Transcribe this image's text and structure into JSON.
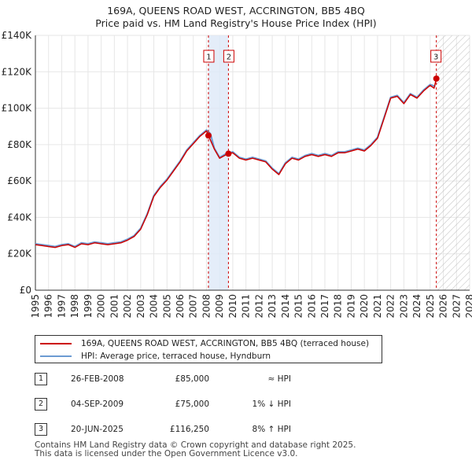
{
  "title": {
    "line1": "169A, QUEENS ROAD WEST, ACCRINGTON, BB5 4BQ",
    "line2": "Price paid vs. HM Land Registry's House Price Index (HPI)"
  },
  "colors": {
    "property": "#cc0000",
    "hpi": "#6b9bd2",
    "axis": "#333333",
    "grid": "#e6e6e6",
    "shade": "#dde8f7",
    "marker_line": "#cc0000",
    "hatch": "#bbbbbb"
  },
  "chart_data": {
    "type": "line",
    "title": "Price paid vs. HM Land Registry's House Price Index (HPI)",
    "xlabel": "",
    "ylabel": "",
    "xlim": [
      1995,
      2028
    ],
    "ylim": [
      0,
      140000
    ],
    "yticks": [
      0,
      20000,
      40000,
      60000,
      80000,
      100000,
      120000,
      140000
    ],
    "ytick_labels": [
      "£0",
      "£20K",
      "£40K",
      "£60K",
      "£80K",
      "£100K",
      "£120K",
      "£140K"
    ],
    "xticks": [
      1995,
      1996,
      1997,
      1998,
      1999,
      2000,
      2001,
      2002,
      2003,
      2004,
      2005,
      2006,
      2007,
      2008,
      2009,
      2010,
      2011,
      2012,
      2013,
      2014,
      2015,
      2016,
      2017,
      2018,
      2019,
      2020,
      2021,
      2022,
      2023,
      2024,
      2025,
      2026,
      2027,
      2028
    ],
    "grid": true,
    "shaded_period": [
      2008.15,
      2009.67
    ],
    "forecast_from": 2025.47,
    "series": [
      {
        "name": "HPI: Average price, terraced house, Hyndburn",
        "x": [
          1995.0,
          1995.5,
          1996.0,
          1996.5,
          1997.0,
          1997.5,
          1998.0,
          1998.5,
          1999.0,
          1999.5,
          2000.0,
          2000.5,
          2001.0,
          2001.5,
          2002.0,
          2002.5,
          2003.0,
          2003.5,
          2004.0,
          2004.5,
          2005.0,
          2005.5,
          2006.0,
          2006.5,
          2007.0,
          2007.5,
          2008.0,
          2008.3,
          2008.6,
          2009.0,
          2009.5,
          2010.0,
          2010.5,
          2011.0,
          2011.5,
          2012.0,
          2012.5,
          2013.0,
          2013.5,
          2014.0,
          2014.5,
          2015.0,
          2015.5,
          2016.0,
          2016.5,
          2017.0,
          2017.5,
          2018.0,
          2018.5,
          2019.0,
          2019.5,
          2020.0,
          2020.5,
          2021.0,
          2021.5,
          2022.0,
          2022.5,
          2023.0,
          2023.5,
          2024.0,
          2024.5,
          2025.0,
          2025.4
        ],
        "values": [
          25500,
          25000,
          24500,
          24000,
          25000,
          25500,
          24000,
          26000,
          25500,
          26500,
          26000,
          25500,
          26000,
          26500,
          28000,
          30000,
          34000,
          42000,
          52000,
          57000,
          61000,
          66000,
          71000,
          77000,
          81000,
          85000,
          88000,
          86000,
          78000,
          73000,
          75000,
          76000,
          73000,
          72000,
          73000,
          72000,
          71000,
          67000,
          64000,
          70000,
          73000,
          72000,
          74000,
          75000,
          74000,
          75000,
          74000,
          76000,
          76000,
          77000,
          78000,
          77000,
          80000,
          84000,
          95000,
          106000,
          107000,
          103000,
          108000,
          106000,
          110000,
          113000,
          112000
        ]
      },
      {
        "name": "169A, QUEENS ROAD WEST, ACCRINGTON, BB5 4BQ (terraced house)",
        "x": [
          1995.0,
          1995.5,
          1996.0,
          1996.5,
          1997.0,
          1997.5,
          1998.0,
          1998.5,
          1999.0,
          1999.5,
          2000.0,
          2000.5,
          2001.0,
          2001.5,
          2002.0,
          2002.5,
          2003.0,
          2003.5,
          2004.0,
          2004.5,
          2005.0,
          2005.5,
          2006.0,
          2006.5,
          2007.0,
          2007.5,
          2008.0,
          2008.15,
          2008.6,
          2009.0,
          2009.5,
          2009.67,
          2010.0,
          2010.5,
          2011.0,
          2011.5,
          2012.0,
          2012.5,
          2013.0,
          2013.5,
          2014.0,
          2014.5,
          2015.0,
          2015.5,
          2016.0,
          2016.5,
          2017.0,
          2017.5,
          2018.0,
          2018.5,
          2019.0,
          2019.5,
          2020.0,
          2020.5,
          2021.0,
          2021.5,
          2022.0,
          2022.5,
          2023.0,
          2023.5,
          2024.0,
          2024.5,
          2025.0,
          2025.3,
          2025.47
        ],
        "values": [
          25000,
          24500,
          24000,
          23500,
          24500,
          25000,
          23500,
          25500,
          25000,
          26000,
          25500,
          25000,
          25500,
          26000,
          27500,
          29500,
          33500,
          41500,
          51500,
          56500,
          60500,
          65500,
          70500,
          76500,
          80500,
          84500,
          87500,
          85000,
          77500,
          72500,
          74500,
          75000,
          75500,
          72500,
          71500,
          72500,
          71500,
          70500,
          66500,
          63500,
          69500,
          72500,
          71500,
          73500,
          74500,
          73500,
          74500,
          73500,
          75500,
          75500,
          76500,
          77500,
          76500,
          79500,
          83500,
          94500,
          105500,
          106500,
          102500,
          107500,
          105500,
          109500,
          112500,
          111000,
          116250
        ]
      }
    ],
    "annotations": [
      {
        "label": "1",
        "x": 2008.15,
        "y": 85000
      },
      {
        "label": "2",
        "x": 2009.67,
        "y": 75000
      },
      {
        "label": "3",
        "x": 2025.47,
        "y": 116250
      }
    ]
  },
  "legend": {
    "property_label": "169A, QUEENS ROAD WEST, ACCRINGTON, BB5 4BQ (terraced house)",
    "hpi_label": "HPI: Average price, terraced house, Hyndburn"
  },
  "sales": [
    {
      "num": "1",
      "date": "26-FEB-2008",
      "price": "£85,000",
      "hpi": "≈ HPI"
    },
    {
      "num": "2",
      "date": "04-SEP-2009",
      "price": "£75,000",
      "hpi": "1% ↓ HPI"
    },
    {
      "num": "3",
      "date": "20-JUN-2025",
      "price": "£116,250",
      "hpi": "8% ↑ HPI"
    }
  ],
  "footer": {
    "line1": "Contains HM Land Registry data © Crown copyright and database right 2025.",
    "line2": "This data is licensed under the Open Government Licence v3.0."
  }
}
